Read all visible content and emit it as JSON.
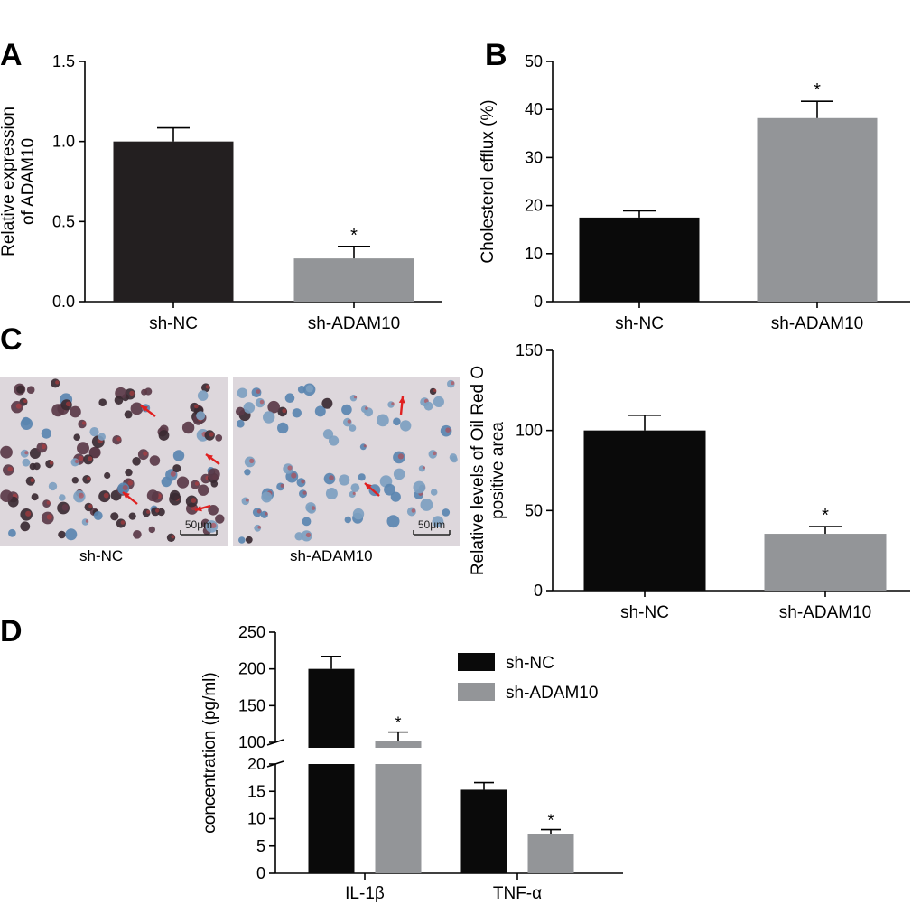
{
  "colors": {
    "dark": "#0a0a0a",
    "dark_a": "#231f20",
    "gray": "#939598",
    "arrow": "#e02020"
  },
  "panel_letters": [
    "A",
    "B",
    "C",
    "D"
  ],
  "micrographs": {
    "labels": [
      "sh-NC",
      "sh-ADAM10"
    ],
    "scale_bar_text": "50μm"
  },
  "chart_data": [
    {
      "panel": "A",
      "type": "bar",
      "categories": [
        "sh-NC",
        "sh-ADAM10"
      ],
      "values": [
        1.0,
        0.27
      ],
      "errors": [
        0.085,
        0.075
      ],
      "significance": [
        "",
        "*"
      ],
      "ylabel_lines": [
        "Relative expression",
        "of ADAM10"
      ],
      "ylim": [
        0,
        1.5
      ],
      "yticks": [
        "0.0",
        "0.5",
        "1.0",
        "1.5"
      ]
    },
    {
      "panel": "B",
      "type": "bar",
      "categories": [
        "sh-NC",
        "sh-ADAM10"
      ],
      "values": [
        17.5,
        38.2
      ],
      "errors": [
        1.4,
        3.5
      ],
      "significance": [
        "",
        "*"
      ],
      "ylabel_lines": [
        "Cholesterol efflux (%)"
      ],
      "ylim": [
        0,
        50
      ],
      "yticks": [
        "0",
        "10",
        "20",
        "30",
        "40",
        "50"
      ]
    },
    {
      "panel": "C",
      "type": "bar",
      "categories": [
        "sh-NC",
        "sh-ADAM10"
      ],
      "values": [
        100,
        35.5
      ],
      "errors": [
        9.5,
        4.5
      ],
      "significance": [
        "",
        "*"
      ],
      "ylabel_lines": [
        "Relative levels of Oil Red O",
        "positive area"
      ],
      "ylim": [
        0,
        150
      ],
      "yticks": [
        "0",
        "50",
        "100",
        "150"
      ]
    },
    {
      "panel": "D",
      "type": "bar",
      "categories": [
        "IL-1β",
        "TNF-α"
      ],
      "series": [
        {
          "name": "sh-NC",
          "values": [
            200,
            15.3
          ],
          "errors": [
            17,
            1.3
          ],
          "significance": [
            "",
            ""
          ]
        },
        {
          "name": "sh-ADAM10",
          "values": [
            102,
            7.2
          ],
          "errors": [
            12,
            0.8
          ],
          "significance": [
            "*",
            "*"
          ]
        }
      ],
      "ylabel_lines": [
        "concentration (pg/ml)"
      ],
      "broken_axis": {
        "lower": [
          0,
          20
        ],
        "upper": [
          100,
          250
        ]
      },
      "yticks_lower": [
        "0",
        "5",
        "10",
        "15",
        "20"
      ],
      "yticks_upper": [
        "100",
        "150",
        "200",
        "250"
      ],
      "legend_position": "top-right"
    }
  ]
}
